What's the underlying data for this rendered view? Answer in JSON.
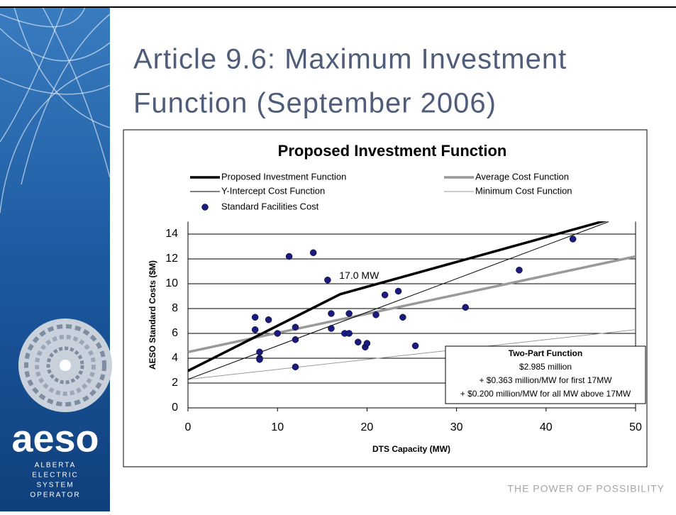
{
  "slide": {
    "title_line1": "Article 9.6: Maximum Investment",
    "title_line2": "Function (September 2006)",
    "footer": "THE POWER OF POSSIBILITY",
    "logo": "aeso",
    "logo_lines": [
      "ALBERTA",
      "ELECTRIC",
      "SYSTEM",
      "OPERATOR"
    ]
  },
  "chart_data": {
    "type": "line",
    "title": "Proposed Investment Function",
    "x_label": "DTS Capacity (MW)",
    "y_label": "AESO Standard Costs ($M)",
    "xlim": [
      0,
      50
    ],
    "ylim": [
      0,
      15
    ],
    "xticks": [
      0,
      10,
      20,
      30,
      40,
      50
    ],
    "yticks": [
      0,
      2,
      4,
      6,
      8,
      10,
      12,
      14
    ],
    "grid": true,
    "series": [
      {
        "name": "Proposed Investment Function",
        "kind": "line",
        "color": "#000000",
        "width": 3.5,
        "x": [
          0,
          17,
          50
        ],
        "values": [
          2.985,
          9.156,
          15.756
        ]
      },
      {
        "name": "Average Cost Function",
        "kind": "line",
        "color": "#999999",
        "width": 3.5,
        "x": [
          0,
          50
        ],
        "values": [
          4.5,
          12.2
        ]
      },
      {
        "name": "Y-Intercept Cost Function",
        "kind": "line",
        "color": "#000000",
        "width": 1,
        "x": [
          0,
          47
        ],
        "values": [
          2.3,
          15.0
        ]
      },
      {
        "name": "Minimum Cost Function",
        "kind": "line",
        "color": "#999999",
        "width": 1,
        "x": [
          0,
          50
        ],
        "values": [
          2.3,
          6.3
        ]
      },
      {
        "name": "Standard Facilities Cost",
        "kind": "scatter",
        "color": "#1a1a80",
        "x": [
          7.5,
          7.5,
          9,
          8,
          8,
          8,
          10,
          11.3,
          12,
          12,
          12,
          14,
          15.6,
          16,
          16,
          17.5,
          18,
          18,
          19,
          19.8,
          20,
          21,
          22,
          23.5,
          24,
          25.4,
          31,
          37,
          43
        ],
        "values": [
          7.3,
          6.3,
          7.1,
          4.5,
          4.0,
          3.9,
          6.0,
          12.2,
          6.5,
          5.5,
          3.3,
          12.5,
          10.3,
          7.6,
          6.4,
          6.0,
          7.6,
          6.0,
          5.3,
          4.9,
          5.2,
          7.5,
          9.1,
          9.4,
          7.3,
          5.0,
          8.1,
          11.1,
          13.6
        ]
      }
    ],
    "annotation": {
      "text": "17.0 MW",
      "x": 16.9,
      "y": 10.6
    },
    "note": {
      "title": "Two-Part Function",
      "lines": [
        "$2.985 million",
        "+ $0.363 million/MW for first 17MW",
        "+ $0.200 million/MW for all MW above 17MW"
      ]
    }
  }
}
